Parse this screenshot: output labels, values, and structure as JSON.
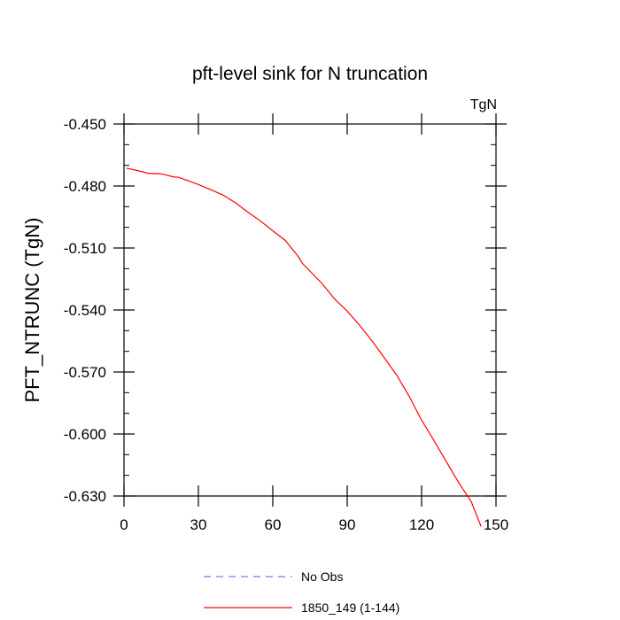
{
  "chart_data": {
    "type": "line",
    "title": "pft-level sink for N truncation",
    "units_label": "TgN",
    "ylabel": "PFT_NTRUNC  (TgN)",
    "xlabel": "",
    "xlim": [
      0,
      150
    ],
    "ylim": [
      -0.63,
      -0.45
    ],
    "xticks": [
      0,
      30,
      60,
      90,
      120,
      150
    ],
    "xtick_labels": [
      "0",
      "30",
      "60",
      "90",
      "120",
      "150"
    ],
    "yticks": [
      -0.63,
      -0.6,
      -0.57,
      -0.54,
      -0.51,
      -0.48,
      -0.45
    ],
    "ytick_labels": [
      "-0.630",
      "-0.600",
      "-0.570",
      "-0.540",
      "-0.510",
      "-0.480",
      "-0.450"
    ],
    "grid": false,
    "legend_position": "bottom",
    "series": [
      {
        "name": "1850_149 (1-144)",
        "color": "#ff0000",
        "style": "solid",
        "x": [
          1,
          5,
          8,
          10,
          15,
          20,
          22,
          25,
          30,
          35,
          40,
          45,
          50,
          55,
          60,
          65,
          70,
          72,
          75,
          80,
          85,
          90,
          95,
          100,
          105,
          110,
          115,
          120,
          125,
          130,
          135,
          140,
          144
        ],
        "y": [
          -0.4714,
          -0.4724,
          -0.4733,
          -0.4739,
          -0.4741,
          -0.4756,
          -0.4758,
          -0.4771,
          -0.4793,
          -0.4818,
          -0.4844,
          -0.4882,
          -0.4927,
          -0.4969,
          -0.5017,
          -0.5063,
          -0.5137,
          -0.5175,
          -0.5212,
          -0.5274,
          -0.5348,
          -0.5405,
          -0.5474,
          -0.5549,
          -0.5632,
          -0.5716,
          -0.5818,
          -0.5933,
          -0.6032,
          -0.6134,
          -0.6236,
          -0.6327,
          -0.6448
        ]
      },
      {
        "name": "No Obs",
        "color": "#7777ff",
        "style": "dashed",
        "x": [],
        "y": []
      }
    ]
  }
}
